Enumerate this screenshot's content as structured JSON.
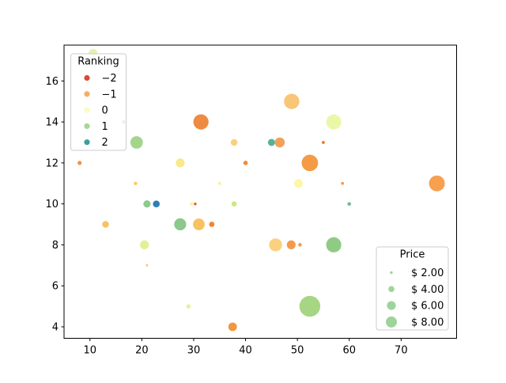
{
  "chart_data": {
    "type": "scatter",
    "title": "",
    "xlabel": "",
    "ylabel": "",
    "xlim": [
      5.0,
      80.7
    ],
    "ylim": [
      3.44,
      17.75
    ],
    "xticks": [
      10,
      20,
      30,
      40,
      50,
      60,
      70
    ],
    "yticks": [
      4,
      6,
      8,
      10,
      12,
      14,
      16
    ],
    "grid": false,
    "color_legend": {
      "title": "Ranking",
      "position": "upper-left",
      "entries": [
        {
          "label": "−2",
          "color": "#da4a34"
        },
        {
          "label": "−1",
          "color": "#f6ad62"
        },
        {
          "label": "0",
          "color": "#fafbc0"
        },
        {
          "label": "1",
          "color": "#a9d696"
        },
        {
          "label": "2",
          "color": "#3f9da0"
        }
      ]
    },
    "size_legend": {
      "title": "Price",
      "position": "lower-right",
      "swatch_color": "#9ed49a",
      "entries": [
        {
          "label": "$ 2.00",
          "r": 1.7
        },
        {
          "label": "$ 4.00",
          "r": 3.8
        },
        {
          "label": "$ 6.00",
          "r": 5.6
        },
        {
          "label": "$ 8.00",
          "r": 7.0
        }
      ]
    },
    "points": [
      {
        "x": 8.0,
        "y": 12.0,
        "r": 2.6,
        "color": "#f09148"
      },
      {
        "x": 10.6,
        "y": 17.35,
        "r": 5.5,
        "color": "#e4f0b4"
      },
      {
        "x": 13.0,
        "y": 9.0,
        "r": 4.3,
        "color": "#f6c45f"
      },
      {
        "x": 16.5,
        "y": 14.0,
        "r": 2.2,
        "color": "#e78f80"
      },
      {
        "x": 18.8,
        "y": 11.0,
        "r": 2.2,
        "color": "#f8cc61"
      },
      {
        "x": 19.0,
        "y": 13.0,
        "r": 7.9,
        "color": "#a5d58d"
      },
      {
        "x": 20.5,
        "y": 8.0,
        "r": 5.6,
        "color": "#e0f294"
      },
      {
        "x": 21.0,
        "y": 10.0,
        "r": 4.6,
        "color": "#8ec98e"
      },
      {
        "x": 21.0,
        "y": 7.0,
        "r": 1.4,
        "color": "#f9c455"
      },
      {
        "x": 22.8,
        "y": 10.0,
        "r": 4.3,
        "color": "#2e7eb8"
      },
      {
        "x": 27.4,
        "y": 12.0,
        "r": 5.6,
        "color": "#fae98c"
      },
      {
        "x": 27.4,
        "y": 9.0,
        "r": 7.6,
        "color": "#8bc88b"
      },
      {
        "x": 29.0,
        "y": 5.0,
        "r": 2.6,
        "color": "#e2f48e"
      },
      {
        "x": 29.6,
        "y": 10.0,
        "r": 2.4,
        "color": "#fdf3a5"
      },
      {
        "x": 30.3,
        "y": 10.0,
        "r": 1.7,
        "color": "#e85c2e"
      },
      {
        "x": 31.0,
        "y": 9.0,
        "r": 7.4,
        "color": "#f8c161"
      },
      {
        "x": 31.4,
        "y": 14.0,
        "r": 9.6,
        "color": "#ee8a42"
      },
      {
        "x": 33.5,
        "y": 9.0,
        "r": 3.4,
        "color": "#ee8634"
      },
      {
        "x": 35.0,
        "y": 11.0,
        "r": 2.0,
        "color": "#f9f0a0"
      },
      {
        "x": 37.5,
        "y": 4.0,
        "r": 5.4,
        "color": "#f0973f"
      },
      {
        "x": 37.8,
        "y": 13.0,
        "r": 4.3,
        "color": "#fbd07c"
      },
      {
        "x": 37.8,
        "y": 10.0,
        "r": 3.3,
        "color": "#cce97a"
      },
      {
        "x": 40.0,
        "y": 12.0,
        "r": 2.8,
        "color": "#ef8a3d"
      },
      {
        "x": 45.0,
        "y": 13.0,
        "r": 4.5,
        "color": "#55b295"
      },
      {
        "x": 45.8,
        "y": 8.0,
        "r": 8.2,
        "color": "#fbd180"
      },
      {
        "x": 46.6,
        "y": 13.0,
        "r": 6.3,
        "color": "#f2a159"
      },
      {
        "x": 48.8,
        "y": 8.0,
        "r": 5.6,
        "color": "#f59a4a"
      },
      {
        "x": 48.9,
        "y": 15.0,
        "r": 9.7,
        "color": "#f9c577"
      },
      {
        "x": 50.2,
        "y": 11.0,
        "r": 5.5,
        "color": "#fdf6a8"
      },
      {
        "x": 50.5,
        "y": 8.0,
        "r": 2.3,
        "color": "#f59b52"
      },
      {
        "x": 52.4,
        "y": 12.0,
        "r": 10.4,
        "color": "#f59b45"
      },
      {
        "x": 52.4,
        "y": 5.0,
        "r": 13.2,
        "color": "#a6d584"
      },
      {
        "x": 55.0,
        "y": 13.0,
        "r": 1.9,
        "color": "#e8752c"
      },
      {
        "x": 57.0,
        "y": 14.0,
        "r": 9.5,
        "color": "#eaf7a8"
      },
      {
        "x": 57.0,
        "y": 8.0,
        "r": 9.6,
        "color": "#90cb86"
      },
      {
        "x": 58.7,
        "y": 11.0,
        "r": 1.9,
        "color": "#f59a53"
      },
      {
        "x": 60.0,
        "y": 10.0,
        "r": 2.3,
        "color": "#6dbe92"
      },
      {
        "x": 76.9,
        "y": 11.0,
        "r": 10.0,
        "color": "#f7a050"
      }
    ]
  }
}
